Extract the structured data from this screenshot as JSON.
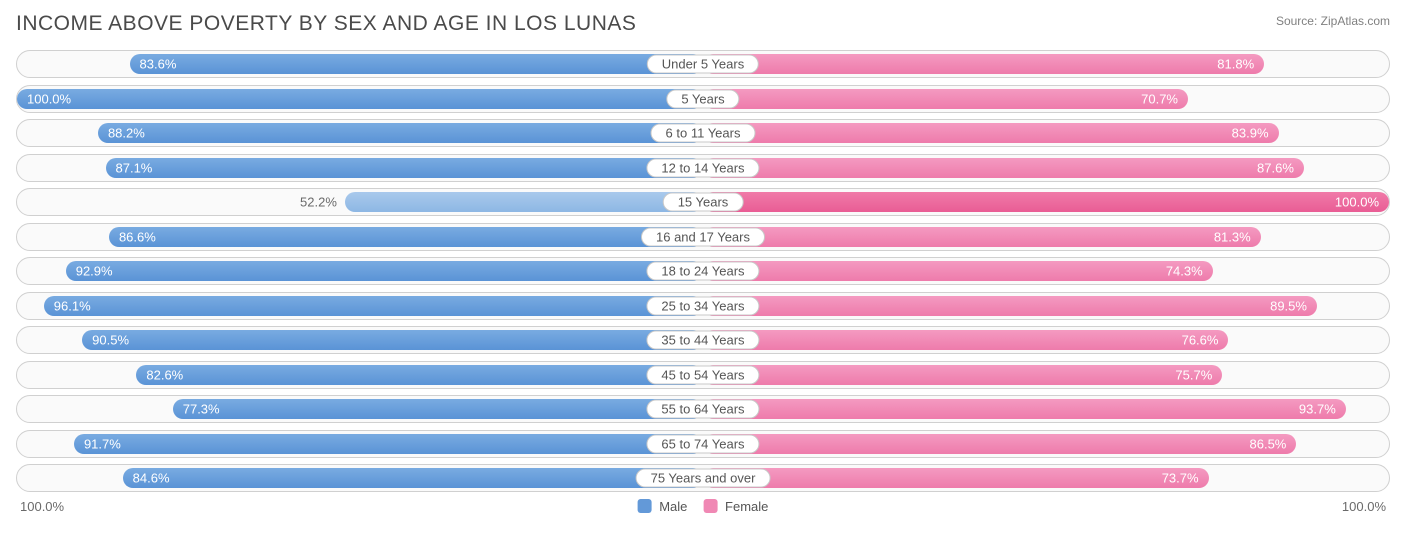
{
  "title": "INCOME ABOVE POVERTY BY SEX AND AGE IN LOS LUNAS",
  "source": "Source: ZipAtlas.com",
  "chart": {
    "type": "diverging-bar",
    "male_color": "#6399d8",
    "male_light_color": "#9bc0e8",
    "female_color": "#f088b4",
    "female_strong_color": "#ea6a9e",
    "track_border": "#d0d0d0",
    "track_bg": "#fafafa",
    "label_text_color": "#555555",
    "value_text_color_inside": "#ffffff",
    "value_text_color_outside": "#6a6a6a",
    "xlim": 100.0,
    "rows": [
      {
        "label": "Under 5 Years",
        "male": 83.6,
        "female": 81.8
      },
      {
        "label": "5 Years",
        "male": 100.0,
        "female": 70.7
      },
      {
        "label": "6 to 11 Years",
        "male": 88.2,
        "female": 83.9
      },
      {
        "label": "12 to 14 Years",
        "male": 87.1,
        "female": 87.6
      },
      {
        "label": "15 Years",
        "male": 52.2,
        "female": 100.0,
        "male_light": true,
        "female_strong": true,
        "male_label_outside": true
      },
      {
        "label": "16 and 17 Years",
        "male": 86.6,
        "female": 81.3
      },
      {
        "label": "18 to 24 Years",
        "male": 92.9,
        "female": 74.3
      },
      {
        "label": "25 to 34 Years",
        "male": 96.1,
        "female": 89.5
      },
      {
        "label": "35 to 44 Years",
        "male": 90.5,
        "female": 76.6
      },
      {
        "label": "45 to 54 Years",
        "male": 82.6,
        "female": 75.7
      },
      {
        "label": "55 to 64 Years",
        "male": 77.3,
        "female": 93.7
      },
      {
        "label": "65 to 74 Years",
        "male": 91.7,
        "female": 86.5
      },
      {
        "label": "75 Years and over",
        "male": 84.6,
        "female": 73.7
      }
    ]
  },
  "axis": {
    "left": "100.0%",
    "right": "100.0%"
  },
  "legend": {
    "male": {
      "label": "Male",
      "color": "#6399d8"
    },
    "female": {
      "label": "Female",
      "color": "#f088b4"
    }
  }
}
